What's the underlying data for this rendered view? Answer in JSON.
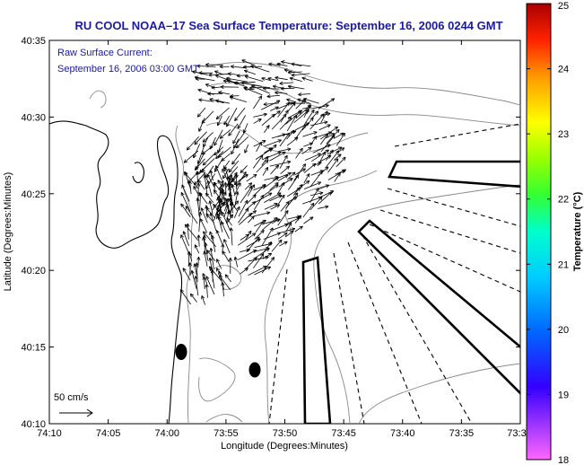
{
  "title": "RU COOL  NOAA–17  Sea Surface Temperature:  September 16, 2006 0244 GMT",
  "current_note": {
    "line1": "Raw Surface Current:",
    "line2": "September 16, 2006 03:00 GMT"
  },
  "scale_label": "50 cm/s",
  "x_axis": {
    "label": "Longitude (Degrees:Minutes)",
    "ticks": [
      "74:10",
      "74:05",
      "74:00",
      "73:55",
      "73:50",
      "73:45",
      "73:40",
      "73:35",
      "73:3"
    ]
  },
  "y_axis": {
    "label": "Latitude (Degrees:Minutes)",
    "ticks": [
      "40:10",
      "40:15",
      "40:20",
      "40:25",
      "40:30",
      "40:35"
    ]
  },
  "colorbar": {
    "label": "Temperature (°C)",
    "ticks": [
      "18",
      "19",
      "20",
      "21",
      "22",
      "23",
      "24",
      "25"
    ],
    "min": 18,
    "max": 25
  },
  "colors": {
    "title_text": "#1a1aa0",
    "land_outline": "#000000",
    "bathymetry": "#888888",
    "vectors": "#000000"
  }
}
